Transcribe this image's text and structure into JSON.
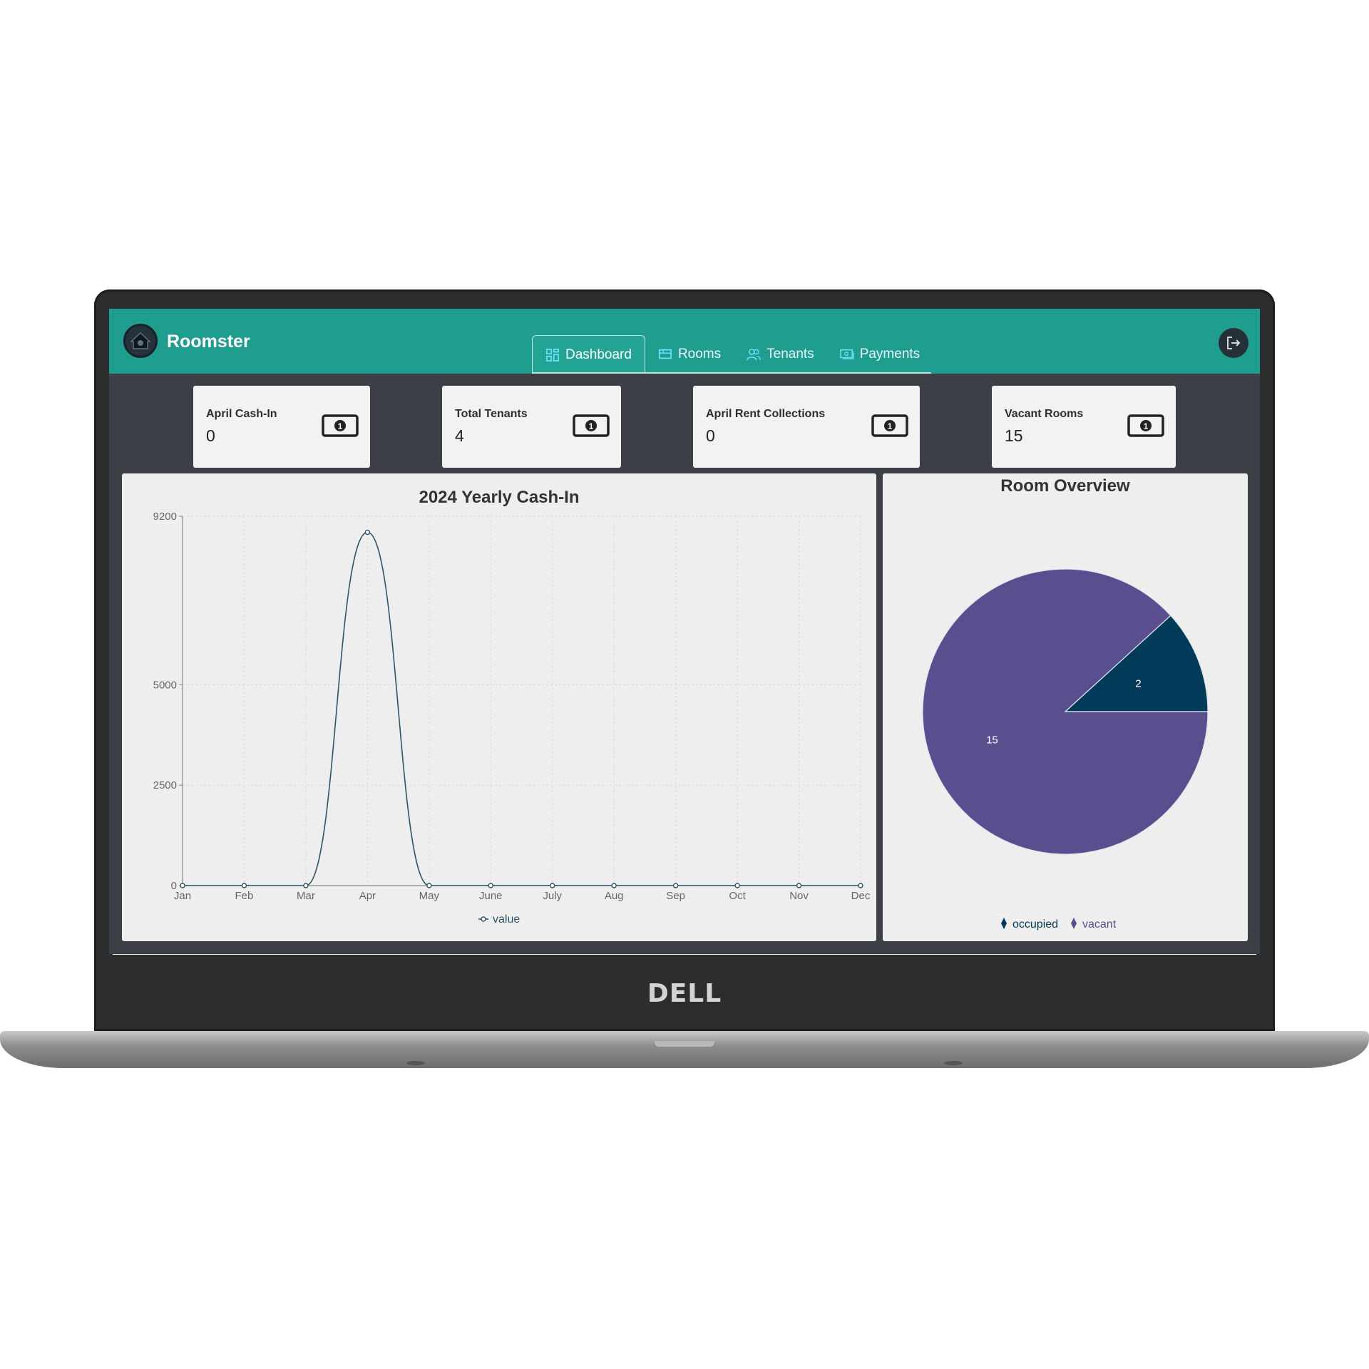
{
  "header": {
    "app_name": "Roomster",
    "nav": [
      {
        "label": "Dashboard",
        "icon": "dashboard-grid-icon",
        "active": true
      },
      {
        "label": "Rooms",
        "icon": "rooms-icon",
        "active": false
      },
      {
        "label": "Tenants",
        "icon": "users-icon",
        "active": false
      },
      {
        "label": "Payments",
        "icon": "payment-card-icon",
        "active": false
      }
    ],
    "logout_icon": "logout-icon"
  },
  "cards": [
    {
      "label": "April Cash-In",
      "value": "0",
      "icon": "money-bill-icon"
    },
    {
      "label": "Total Tenants",
      "value": "4",
      "icon": "money-bill-icon"
    },
    {
      "label": "April Rent Collections",
      "value": "0",
      "icon": "money-bill-icon"
    },
    {
      "label": "Vacant Rooms",
      "value": "15",
      "icon": "money-bill-icon"
    }
  ],
  "laptop_brand": "DELL",
  "colors": {
    "header": "#1f9d8f",
    "screen_bg": "#3c3f45",
    "line": "#2f5566",
    "pie_vacant": "#5a4f8e",
    "pie_occupied": "#023a5a"
  },
  "chart_data": [
    {
      "type": "line",
      "title": "2024 Yearly Cash-In",
      "categories": [
        "Jan",
        "Feb",
        "Mar",
        "Apr",
        "May",
        "June",
        "July",
        "Aug",
        "Sep",
        "Oct",
        "Nov",
        "Dec"
      ],
      "series": [
        {
          "name": "value",
          "values": [
            0,
            0,
            0,
            8800,
            0,
            0,
            0,
            0,
            0,
            0,
            0,
            0
          ]
        }
      ],
      "yticks": [
        0,
        2500,
        5000,
        9200
      ],
      "ylim": [
        0,
        9200
      ],
      "grid": true,
      "smooth": true,
      "legend": "bottom"
    },
    {
      "type": "pie",
      "title": "Room Overview",
      "labels": [
        "occupied",
        "vacant"
      ],
      "values": [
        2,
        15
      ],
      "legend": "bottom"
    }
  ]
}
